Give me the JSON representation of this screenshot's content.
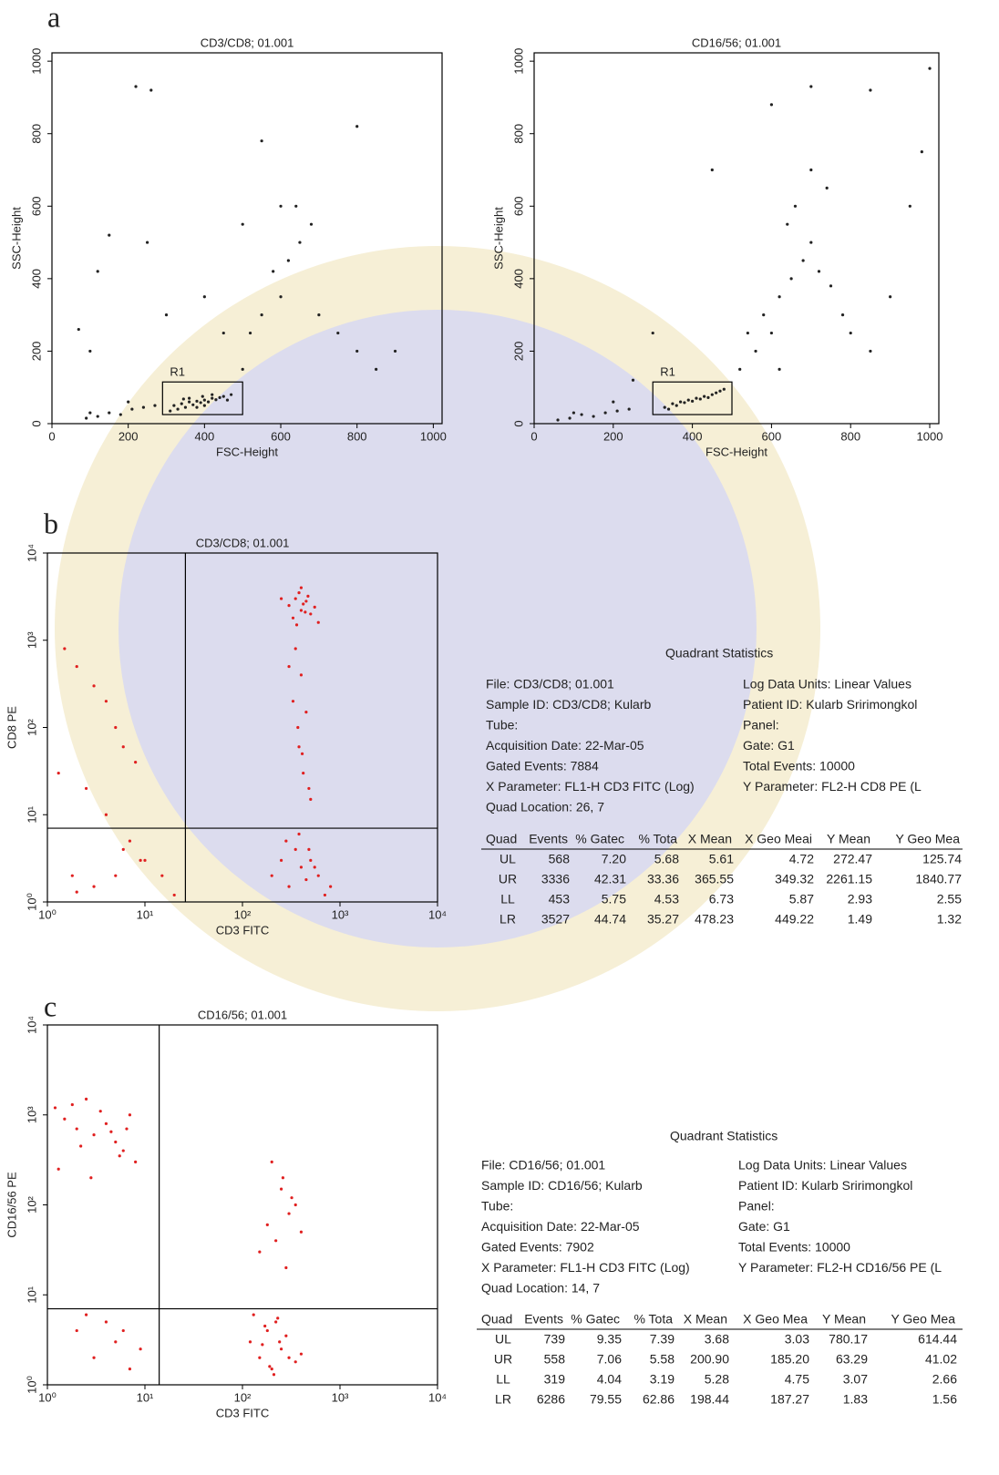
{
  "panel_labels": [
    "a",
    "b",
    "c"
  ],
  "chart_data": [
    {
      "type": "scatter",
      "title": "CD3/CD8; 01.001",
      "xlabel": "FSC-Height",
      "ylabel": "SSC-Height",
      "color": "#222222",
      "xlim": [
        0,
        1023
      ],
      "ylim": [
        0,
        1023
      ],
      "xticks": [
        0,
        200,
        400,
        600,
        800,
        1000
      ],
      "yticks": [
        0,
        200,
        400,
        600,
        800,
        1000
      ],
      "gate": {
        "label": "R1",
        "x": [
          290,
          500
        ],
        "y": [
          25,
          115
        ]
      },
      "x": [
        320,
        340,
        360,
        380,
        400,
        420,
        440,
        350,
        370,
        390,
        410,
        430,
        450,
        470,
        330,
        360,
        400,
        420,
        380,
        460,
        90,
        120,
        150,
        180,
        210,
        240,
        270,
        100,
        200,
        500,
        520,
        550,
        600,
        620,
        650,
        640,
        580,
        700,
        750,
        800,
        850,
        450,
        400,
        300,
        250,
        150,
        120,
        100,
        70,
        220,
        260,
        550,
        800,
        900,
        680,
        600,
        500,
        310,
        345,
        395
      ],
      "y": [
        50,
        55,
        60,
        62,
        65,
        70,
        72,
        45,
        52,
        58,
        60,
        66,
        75,
        80,
        40,
        70,
        50,
        80,
        45,
        65,
        15,
        20,
        30,
        25,
        40,
        45,
        50,
        30,
        60,
        150,
        250,
        300,
        350,
        450,
        500,
        600,
        420,
        300,
        250,
        200,
        150,
        250,
        350,
        300,
        500,
        520,
        420,
        200,
        260,
        930,
        920,
        780,
        820,
        200,
        550,
        600,
        550,
        35,
        68,
        75
      ]
    },
    {
      "type": "scatter",
      "title": "CD16/56; 01.001",
      "xlabel": "FSC-Height",
      "ylabel": "SSC-Height",
      "color": "#222222",
      "xlim": [
        0,
        1023
      ],
      "ylim": [
        0,
        1023
      ],
      "xticks": [
        0,
        200,
        400,
        600,
        800,
        1000
      ],
      "yticks": [
        0,
        200,
        400,
        600,
        800,
        1000
      ],
      "gate": {
        "label": "R1",
        "x": [
          300,
          500
        ],
        "y": [
          25,
          115
        ]
      },
      "x": [
        330,
        350,
        370,
        390,
        410,
        430,
        450,
        470,
        340,
        380,
        420,
        460,
        360,
        400,
        440,
        480,
        60,
        90,
        120,
        150,
        180,
        210,
        240,
        100,
        200,
        520,
        560,
        600,
        620,
        650,
        680,
        700,
        720,
        750,
        780,
        800,
        850,
        900,
        950,
        640,
        660,
        700,
        740,
        580,
        540,
        620,
        980,
        1000,
        850,
        700,
        600,
        450,
        300,
        250
      ],
      "y": [
        45,
        55,
        60,
        65,
        70,
        75,
        80,
        90,
        40,
        58,
        68,
        85,
        50,
        62,
        72,
        95,
        10,
        15,
        25,
        20,
        30,
        35,
        40,
        30,
        60,
        150,
        200,
        250,
        350,
        400,
        450,
        500,
        420,
        380,
        300,
        250,
        200,
        350,
        600,
        550,
        600,
        700,
        650,
        300,
        250,
        150,
        750,
        980,
        920,
        930,
        880,
        700,
        250,
        120
      ]
    },
    {
      "type": "scatter",
      "log": true,
      "title": "CD3/CD8; 01.001",
      "xlabel": "CD3 FITC",
      "ylabel": "CD8 PE",
      "color": "#e02020",
      "xlim": [
        1,
        10000
      ],
      "ylim": [
        1,
        10000
      ],
      "xticks": [
        {
          "value": 1,
          "label": "10⁰"
        },
        {
          "value": 10,
          "label": "10¹"
        },
        {
          "value": 100,
          "label": "10²"
        },
        {
          "value": 1000,
          "label": "10³"
        },
        {
          "value": 10000,
          "label": "10⁴"
        }
      ],
      "yticks": [
        {
          "value": 1,
          "label": "10⁰"
        },
        {
          "value": 10,
          "label": "10¹"
        },
        {
          "value": 100,
          "label": "10²"
        },
        {
          "value": 1000,
          "label": "10³"
        },
        {
          "value": 10000,
          "label": "10⁴"
        }
      ],
      "quad": [
        26,
        7
      ],
      "x": [
        300,
        350,
        400,
        450,
        500,
        380,
        420,
        330,
        470,
        550,
        360,
        440,
        400,
        250,
        600,
        350,
        400,
        450,
        380,
        420,
        500,
        300,
        330,
        370,
        410,
        480,
        200,
        250,
        300,
        350,
        400,
        450,
        500,
        600,
        700,
        800,
        280,
        380,
        480,
        550,
        1.5,
        2,
        3,
        4,
        5,
        6,
        8,
        1.3,
        2.5,
        4,
        7,
        10,
        1.8,
        3,
        5,
        9,
        2,
        6,
        15,
        20
      ],
      "y": [
        2500,
        3000,
        2200,
        2800,
        2000,
        3500,
        2600,
        1800,
        3200,
        2400,
        1500,
        2100,
        4000,
        3000,
        1600,
        800,
        400,
        150,
        60,
        30,
        15,
        500,
        200,
        100,
        50,
        20,
        2,
        3,
        1.5,
        4,
        2.5,
        1.8,
        3,
        2,
        1.2,
        1.5,
        5,
        6,
        4,
        2.5,
        800,
        500,
        300,
        200,
        100,
        60,
        40,
        30,
        20,
        10,
        5,
        3,
        2,
        1.5,
        2,
        3,
        1.3,
        4,
        2,
        1.2
      ]
    },
    {
      "type": "scatter",
      "log": true,
      "title": "CD16/56; 01.001",
      "xlabel": "CD3 FITC",
      "ylabel": "CD16/56 PE",
      "color": "#e02020",
      "xlim": [
        1,
        10000
      ],
      "ylim": [
        1,
        10000
      ],
      "xticks": [
        {
          "value": 1,
          "label": "10⁰"
        },
        {
          "value": 10,
          "label": "10¹"
        },
        {
          "value": 100,
          "label": "10²"
        },
        {
          "value": 1000,
          "label": "10³"
        },
        {
          "value": 10000,
          "label": "10⁴"
        }
      ],
      "yticks": [
        {
          "value": 1,
          "label": "10⁰"
        },
        {
          "value": 10,
          "label": "10¹"
        },
        {
          "value": 100,
          "label": "10²"
        },
        {
          "value": 1000,
          "label": "10³"
        },
        {
          "value": 10000,
          "label": "10⁴"
        }
      ],
      "quad": [
        14,
        7
      ],
      "x": [
        1.2,
        1.5,
        2,
        2.5,
        3,
        4,
        5,
        6,
        7,
        8,
        1.8,
        2.2,
        3.5,
        4.5,
        5.5,
        1.3,
        2.8,
        6.5,
        200,
        250,
        300,
        180,
        220,
        280,
        350,
        150,
        400,
        260,
        320,
        120,
        150,
        180,
        200,
        220,
        250,
        280,
        300,
        350,
        400,
        130,
        170,
        210,
        240,
        160,
        190,
        230,
        2,
        3,
        4,
        5,
        7,
        9,
        2.5,
        6
      ],
      "y": [
        1200,
        900,
        700,
        1500,
        600,
        800,
        500,
        400,
        1000,
        300,
        1300,
        450,
        1100,
        650,
        350,
        250,
        200,
        700,
        300,
        150,
        80,
        60,
        40,
        20,
        100,
        30,
        50,
        200,
        120,
        3,
        2,
        4,
        1.5,
        5,
        2.5,
        3.5,
        2,
        1.8,
        2.2,
        6,
        4.5,
        1.3,
        3,
        2.8,
        1.6,
        5.5,
        4,
        2,
        5,
        3,
        1.5,
        2.5,
        6,
        4
      ]
    }
  ],
  "stats": [
    {
      "title": "Quadrant Statistics",
      "left": [
        "File: CD3/CD8;  01.001",
        "Sample ID: CD3/CD8;  Kularb",
        "Tube:",
        "Acquisition Date: 22-Mar-05",
        "Gated Events: 7884",
        "X Parameter: FL1-H CD3 FITC (Log)",
        "Quad Location: 26, 7"
      ],
      "right": [
        "Log Data Units: Linear Values",
        "Patient ID: Kularb  Sririmongkol",
        "Panel:",
        "Gate: G1",
        "Total Events: 10000",
        "Y Parameter: FL2-H CD8 PE (L"
      ],
      "header": [
        "Quad",
        "Events",
        "% Gatec",
        "% Tota",
        "X Mean",
        "X Geo Meai",
        "Y Mean",
        "Y Geo Mea"
      ],
      "rows": [
        [
          "UL",
          "568",
          "7.20",
          "5.68",
          "5.61",
          "4.72",
          "272.47",
          "125.74"
        ],
        [
          "UR",
          "3336",
          "42.31",
          "33.36",
          "365.55",
          "349.32",
          "2261.15",
          "1840.77"
        ],
        [
          "LL",
          "453",
          "5.75",
          "4.53",
          "6.73",
          "5.87",
          "2.93",
          "2.55"
        ],
        [
          "LR",
          "3527",
          "44.74",
          "35.27",
          "478.23",
          "449.22",
          "1.49",
          "1.32"
        ]
      ]
    },
    {
      "title": "Quadrant Statistics",
      "left": [
        "File: CD16/56; 01.001",
        "Sample ID: CD16/56;  Kularb",
        "Tube:",
        "Acquisition Date: 22-Mar-05",
        "Gated Events: 7902",
        "X Parameter: FL1-H CD3 FITC (Log)",
        "Quad Location: 14, 7"
      ],
      "right": [
        "Log Data Units: Linear Values",
        "Patient ID: Kularb  Sririmongkol",
        "Panel:",
        "Gate: G1",
        "Total Events: 10000",
        "Y Parameter: FL2-H CD16/56 PE (L"
      ],
      "header": [
        "Quad",
        "Events",
        "% Gatec",
        "% Tota",
        "X Mean",
        "X Geo Mea",
        "Y Mean",
        "Y Geo Mea"
      ],
      "rows": [
        [
          "UL",
          "739",
          "9.35",
          "7.39",
          "3.68",
          "3.03",
          "780.17",
          "614.44"
        ],
        [
          "UR",
          "558",
          "7.06",
          "5.58",
          "200.90",
          "185.20",
          "63.29",
          "41.02"
        ],
        [
          "LL",
          "319",
          "4.04",
          "3.19",
          "5.28",
          "4.75",
          "3.07",
          "2.66"
        ],
        [
          "LR",
          "6286",
          "79.55",
          "62.86",
          "198.44",
          "187.27",
          "1.83",
          "1.56"
        ]
      ]
    }
  ]
}
